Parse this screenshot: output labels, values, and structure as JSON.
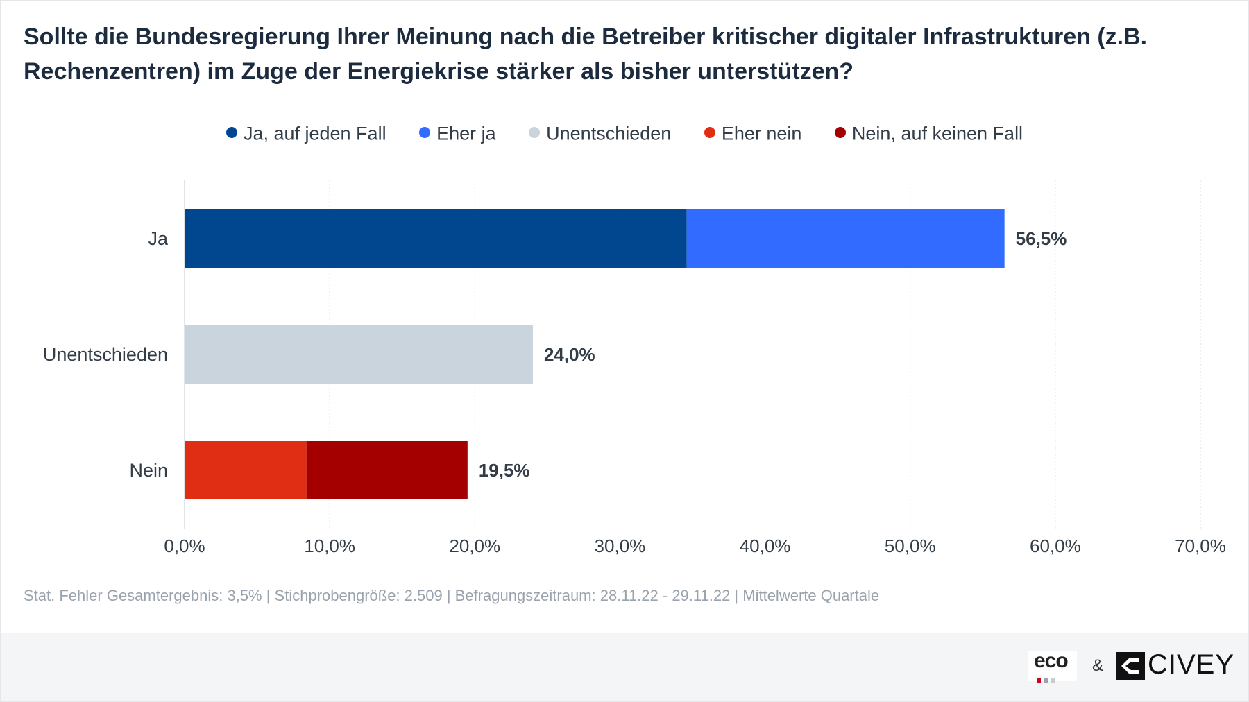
{
  "title": "Sollte die Bundesregierung Ihrer Meinung nach die Betreiber kritischer digitaler Infrastrukturen (z.B. Rechenzentren) im Zuge der Energiekrise stärker als bisher unterstützen?",
  "legend": [
    {
      "label": "Ja, auf jeden Fall",
      "color": "#00478f"
    },
    {
      "label": "Eher ja",
      "color": "#326bff"
    },
    {
      "label": "Unentschieden",
      "color": "#c9d4dd"
    },
    {
      "label": "Eher nein",
      "color": "#e02e14"
    },
    {
      "label": "Nein, auf keinen Fall",
      "color": "#a50000"
    }
  ],
  "chart_data": {
    "type": "bar",
    "orientation": "horizontal",
    "stacked": true,
    "categories": [
      "Ja",
      "Unentschieden",
      "Nein"
    ],
    "series": [
      {
        "name": "Ja, auf jeden Fall",
        "color": "#00478f",
        "values": [
          34.6,
          0,
          0
        ]
      },
      {
        "name": "Eher ja",
        "color": "#326bff",
        "values": [
          21.9,
          0,
          0
        ]
      },
      {
        "name": "Unentschieden",
        "color": "#c9d4dd",
        "values": [
          0,
          24.0,
          0
        ]
      },
      {
        "name": "Eher nein",
        "color": "#e02e14",
        "values": [
          0,
          0,
          8.4
        ]
      },
      {
        "name": "Nein, auf keinen Fall",
        "color": "#a50000",
        "values": [
          0,
          0,
          11.1
        ]
      }
    ],
    "totals": [
      "56,5%",
      "24,0%",
      "19,5%"
    ],
    "xlim": [
      0,
      70
    ],
    "xticks": [
      0,
      10,
      20,
      30,
      40,
      50,
      60,
      70
    ],
    "xtick_labels": [
      "0,0%",
      "10,0%",
      "20,0%",
      "30,0%",
      "40,0%",
      "50,0%",
      "60,0%",
      "70,0%"
    ],
    "grid": "vertical-dotted",
    "legend_position": "top"
  },
  "footer_note": "Stat. Fehler Gesamtergebnis: 3,5% | Stichprobengröße: 2.509 | Befragungszeitraum: 28.11.22 - 29.11.22 | Mittelwerte Quartale",
  "logos": {
    "eco": "eco",
    "eco_dot_colors": [
      "#d0021b",
      "#9aa3ad",
      "#c7ccd1"
    ],
    "ampersand": "&",
    "civey": "CIVEY"
  }
}
